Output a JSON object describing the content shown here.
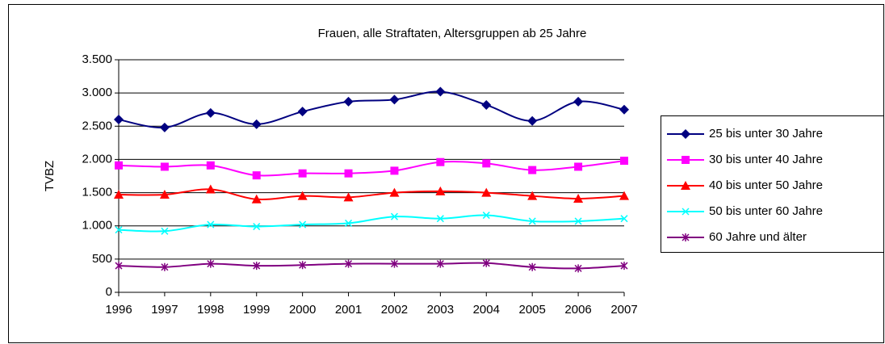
{
  "chart_data": {
    "type": "line",
    "smooth": true,
    "title": "Frauen, alle Straftaten, Altersgruppen ab 25 Jahre",
    "y_label": "TVBZ",
    "categories": [
      "1996",
      "1997",
      "1998",
      "1999",
      "2000",
      "2001",
      "2002",
      "2003",
      "2004",
      "2005",
      "2006",
      "2007"
    ],
    "series": [
      {
        "name": "25 bis unter 30 Jahre",
        "color": "#000080",
        "marker": "diamond",
        "values": [
          2600,
          2480,
          2700,
          2530,
          2720,
          2870,
          2900,
          3020,
          2820,
          2580,
          2870,
          2750
        ]
      },
      {
        "name": "30 bis unter 40 Jahre",
        "color": "#ff00ff",
        "marker": "square",
        "values": [
          1910,
          1890,
          1910,
          1760,
          1790,
          1790,
          1830,
          1960,
          1940,
          1840,
          1890,
          1980
        ]
      },
      {
        "name": "40 bis unter 50 Jahre",
        "color": "#ff0000",
        "marker": "triangle",
        "values": [
          1470,
          1470,
          1550,
          1400,
          1450,
          1430,
          1500,
          1520,
          1500,
          1450,
          1410,
          1450
        ]
      },
      {
        "name": "50 bis unter 60 Jahre",
        "color": "#00ffff",
        "marker": "x",
        "values": [
          940,
          920,
          1020,
          990,
          1020,
          1040,
          1140,
          1110,
          1160,
          1070,
          1070,
          1110
        ]
      },
      {
        "name": "60 Jahre und älter",
        "color": "#800080",
        "marker": "star",
        "values": [
          400,
          380,
          430,
          400,
          410,
          430,
          430,
          430,
          440,
          380,
          360,
          400
        ]
      }
    ],
    "ylim": [
      0,
      3500
    ],
    "yticks": [
      0,
      500,
      {
        "value": 1000,
        "label": "1.000"
      },
      {
        "value": 1500,
        "label": "1.500"
      },
      {
        "value": 2000,
        "label": "2.000"
      },
      {
        "value": 2500,
        "label": "2.500"
      },
      {
        "value": 3000,
        "label": "3.000"
      },
      {
        "value": 3500,
        "label": "3.500"
      }
    ],
    "grid": true,
    "legend": "right"
  }
}
